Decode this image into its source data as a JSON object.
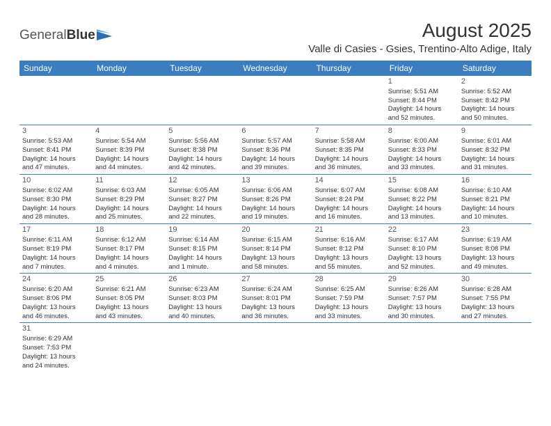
{
  "logo": {
    "text1": "General",
    "text2": "Blue"
  },
  "title": "August 2025",
  "location": "Valle di Casies - Gsies, Trentino-Alto Adige, Italy",
  "colors": {
    "header_bg": "#3a7ebf",
    "header_text": "#ffffff",
    "border": "#3a7ebf",
    "text": "#333333",
    "logo_accent": "#2a6db0"
  },
  "day_headers": [
    "Sunday",
    "Monday",
    "Tuesday",
    "Wednesday",
    "Thursday",
    "Friday",
    "Saturday"
  ],
  "weeks": [
    [
      null,
      null,
      null,
      null,
      null,
      {
        "n": "1",
        "sr": "Sunrise: 5:51 AM",
        "ss": "Sunset: 8:44 PM",
        "d1": "Daylight: 14 hours",
        "d2": "and 52 minutes."
      },
      {
        "n": "2",
        "sr": "Sunrise: 5:52 AM",
        "ss": "Sunset: 8:42 PM",
        "d1": "Daylight: 14 hours",
        "d2": "and 50 minutes."
      }
    ],
    [
      {
        "n": "3",
        "sr": "Sunrise: 5:53 AM",
        "ss": "Sunset: 8:41 PM",
        "d1": "Daylight: 14 hours",
        "d2": "and 47 minutes."
      },
      {
        "n": "4",
        "sr": "Sunrise: 5:54 AM",
        "ss": "Sunset: 8:39 PM",
        "d1": "Daylight: 14 hours",
        "d2": "and 44 minutes."
      },
      {
        "n": "5",
        "sr": "Sunrise: 5:56 AM",
        "ss": "Sunset: 8:38 PM",
        "d1": "Daylight: 14 hours",
        "d2": "and 42 minutes."
      },
      {
        "n": "6",
        "sr": "Sunrise: 5:57 AM",
        "ss": "Sunset: 8:36 PM",
        "d1": "Daylight: 14 hours",
        "d2": "and 39 minutes."
      },
      {
        "n": "7",
        "sr": "Sunrise: 5:58 AM",
        "ss": "Sunset: 8:35 PM",
        "d1": "Daylight: 14 hours",
        "d2": "and 36 minutes."
      },
      {
        "n": "8",
        "sr": "Sunrise: 6:00 AM",
        "ss": "Sunset: 8:33 PM",
        "d1": "Daylight: 14 hours",
        "d2": "and 33 minutes."
      },
      {
        "n": "9",
        "sr": "Sunrise: 6:01 AM",
        "ss": "Sunset: 8:32 PM",
        "d1": "Daylight: 14 hours",
        "d2": "and 31 minutes."
      }
    ],
    [
      {
        "n": "10",
        "sr": "Sunrise: 6:02 AM",
        "ss": "Sunset: 8:30 PM",
        "d1": "Daylight: 14 hours",
        "d2": "and 28 minutes."
      },
      {
        "n": "11",
        "sr": "Sunrise: 6:03 AM",
        "ss": "Sunset: 8:29 PM",
        "d1": "Daylight: 14 hours",
        "d2": "and 25 minutes."
      },
      {
        "n": "12",
        "sr": "Sunrise: 6:05 AM",
        "ss": "Sunset: 8:27 PM",
        "d1": "Daylight: 14 hours",
        "d2": "and 22 minutes."
      },
      {
        "n": "13",
        "sr": "Sunrise: 6:06 AM",
        "ss": "Sunset: 8:26 PM",
        "d1": "Daylight: 14 hours",
        "d2": "and 19 minutes."
      },
      {
        "n": "14",
        "sr": "Sunrise: 6:07 AM",
        "ss": "Sunset: 8:24 PM",
        "d1": "Daylight: 14 hours",
        "d2": "and 16 minutes."
      },
      {
        "n": "15",
        "sr": "Sunrise: 6:08 AM",
        "ss": "Sunset: 8:22 PM",
        "d1": "Daylight: 14 hours",
        "d2": "and 13 minutes."
      },
      {
        "n": "16",
        "sr": "Sunrise: 6:10 AM",
        "ss": "Sunset: 8:21 PM",
        "d1": "Daylight: 14 hours",
        "d2": "and 10 minutes."
      }
    ],
    [
      {
        "n": "17",
        "sr": "Sunrise: 6:11 AM",
        "ss": "Sunset: 8:19 PM",
        "d1": "Daylight: 14 hours",
        "d2": "and 7 minutes."
      },
      {
        "n": "18",
        "sr": "Sunrise: 6:12 AM",
        "ss": "Sunset: 8:17 PM",
        "d1": "Daylight: 14 hours",
        "d2": "and 4 minutes."
      },
      {
        "n": "19",
        "sr": "Sunrise: 6:14 AM",
        "ss": "Sunset: 8:15 PM",
        "d1": "Daylight: 14 hours",
        "d2": "and 1 minute."
      },
      {
        "n": "20",
        "sr": "Sunrise: 6:15 AM",
        "ss": "Sunset: 8:14 PM",
        "d1": "Daylight: 13 hours",
        "d2": "and 58 minutes."
      },
      {
        "n": "21",
        "sr": "Sunrise: 6:16 AM",
        "ss": "Sunset: 8:12 PM",
        "d1": "Daylight: 13 hours",
        "d2": "and 55 minutes."
      },
      {
        "n": "22",
        "sr": "Sunrise: 6:17 AM",
        "ss": "Sunset: 8:10 PM",
        "d1": "Daylight: 13 hours",
        "d2": "and 52 minutes."
      },
      {
        "n": "23",
        "sr": "Sunrise: 6:19 AM",
        "ss": "Sunset: 8:08 PM",
        "d1": "Daylight: 13 hours",
        "d2": "and 49 minutes."
      }
    ],
    [
      {
        "n": "24",
        "sr": "Sunrise: 6:20 AM",
        "ss": "Sunset: 8:06 PM",
        "d1": "Daylight: 13 hours",
        "d2": "and 46 minutes."
      },
      {
        "n": "25",
        "sr": "Sunrise: 6:21 AM",
        "ss": "Sunset: 8:05 PM",
        "d1": "Daylight: 13 hours",
        "d2": "and 43 minutes."
      },
      {
        "n": "26",
        "sr": "Sunrise: 6:23 AM",
        "ss": "Sunset: 8:03 PM",
        "d1": "Daylight: 13 hours",
        "d2": "and 40 minutes."
      },
      {
        "n": "27",
        "sr": "Sunrise: 6:24 AM",
        "ss": "Sunset: 8:01 PM",
        "d1": "Daylight: 13 hours",
        "d2": "and 36 minutes."
      },
      {
        "n": "28",
        "sr": "Sunrise: 6:25 AM",
        "ss": "Sunset: 7:59 PM",
        "d1": "Daylight: 13 hours",
        "d2": "and 33 minutes."
      },
      {
        "n": "29",
        "sr": "Sunrise: 6:26 AM",
        "ss": "Sunset: 7:57 PM",
        "d1": "Daylight: 13 hours",
        "d2": "and 30 minutes."
      },
      {
        "n": "30",
        "sr": "Sunrise: 6:28 AM",
        "ss": "Sunset: 7:55 PM",
        "d1": "Daylight: 13 hours",
        "d2": "and 27 minutes."
      }
    ],
    [
      {
        "n": "31",
        "sr": "Sunrise: 6:29 AM",
        "ss": "Sunset: 7:53 PM",
        "d1": "Daylight: 13 hours",
        "d2": "and 24 minutes."
      },
      null,
      null,
      null,
      null,
      null,
      null
    ]
  ]
}
